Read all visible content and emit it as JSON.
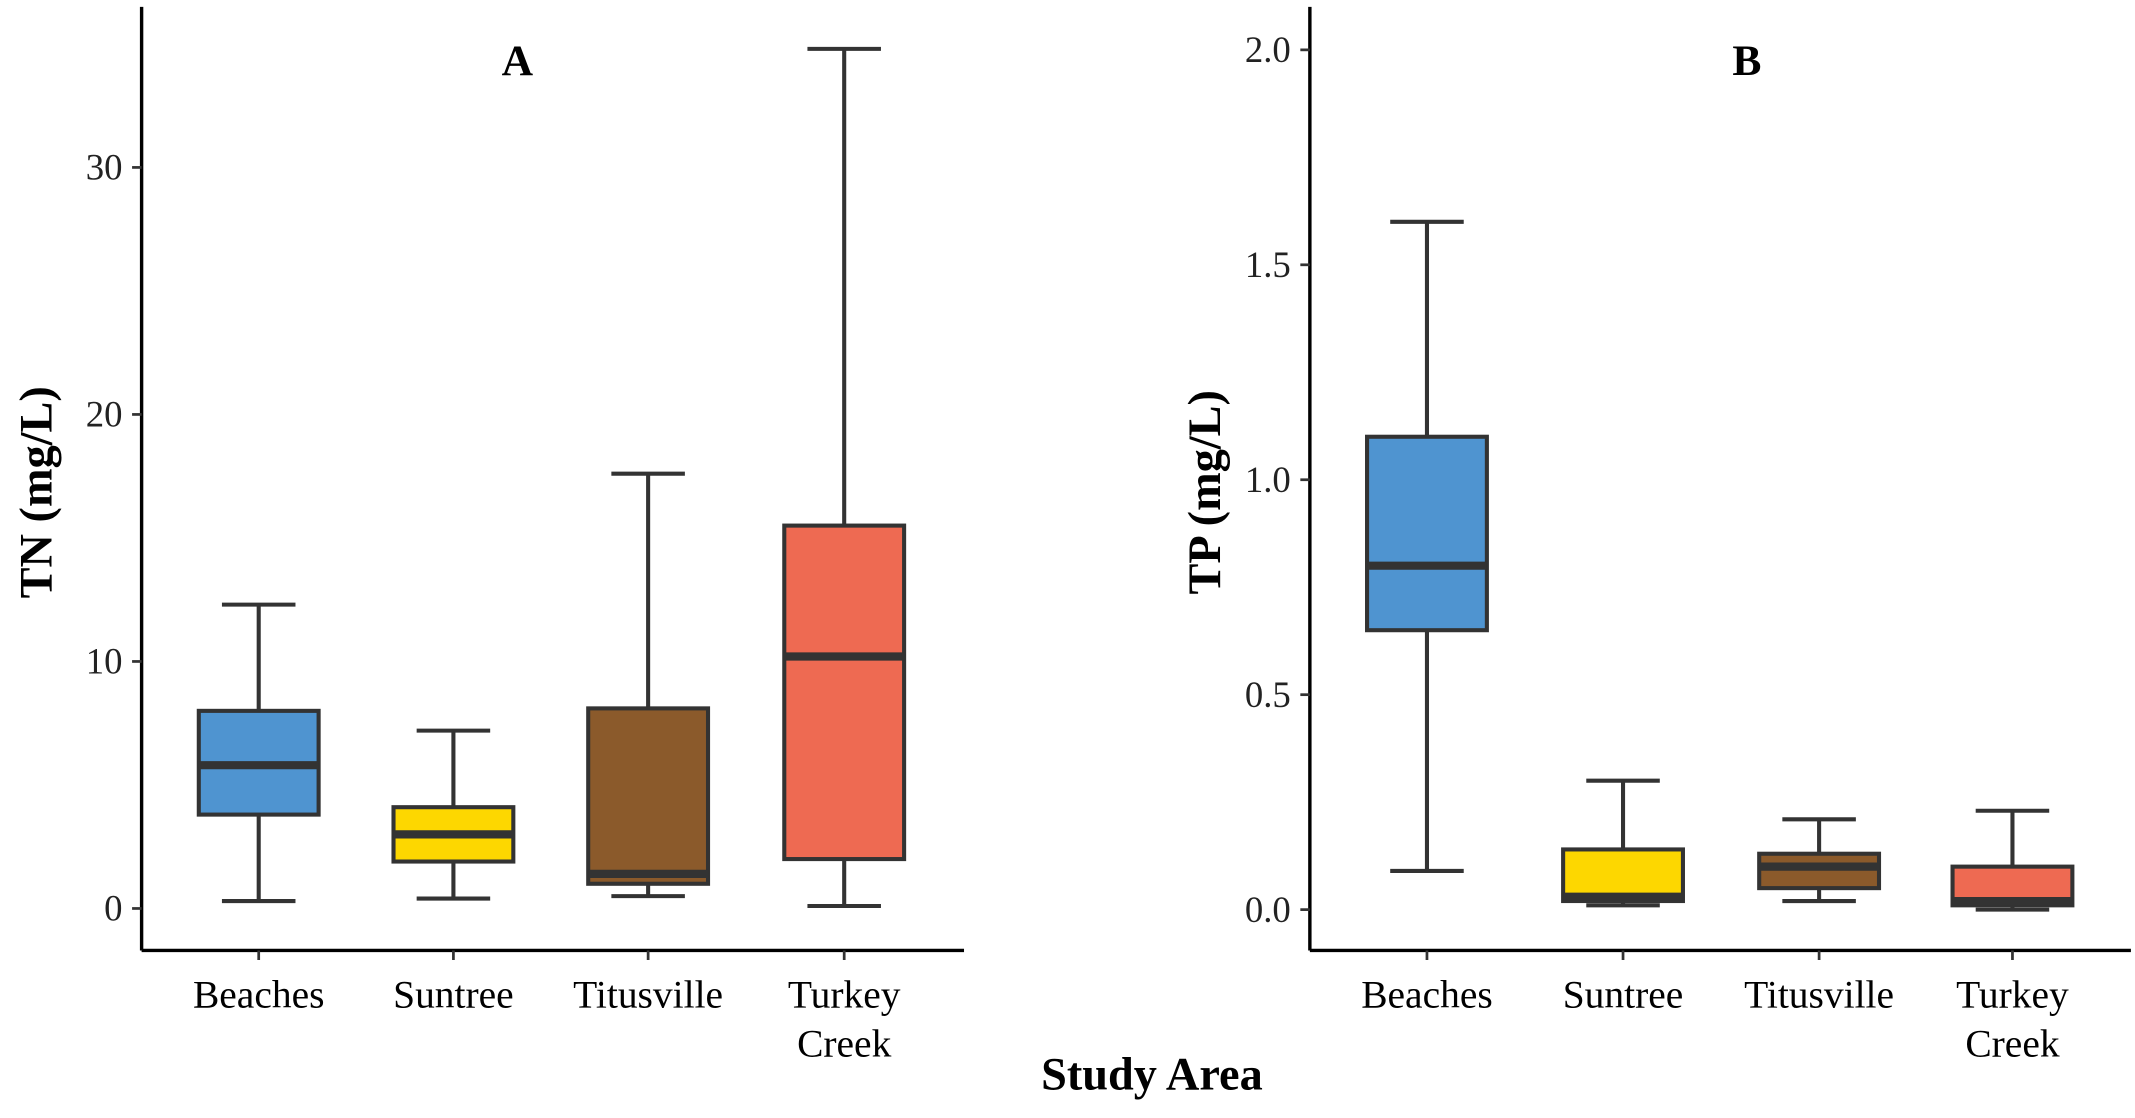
{
  "chart_data": [
    {
      "type": "box",
      "title": "A",
      "ylabel": "TN (mg/L)",
      "xlabel": "Study Area",
      "ylim": [
        -1.7,
        36.5
      ],
      "yticks": [
        0,
        10,
        20,
        30
      ],
      "categories": [
        "Beaches",
        "Suntree",
        "Titusville",
        "Turkey Creek"
      ],
      "category_lines": [
        [
          "Beaches"
        ],
        [
          "Suntree"
        ],
        [
          "Titusville"
        ],
        [
          "Turkey",
          "Creek"
        ]
      ],
      "colors": [
        "#4f94d0",
        "#fdd700",
        "#8b5a2b",
        "#ee6a52"
      ],
      "boxes": [
        {
          "min": 0.3,
          "q1": 3.8,
          "median": 5.8,
          "q3": 8.0,
          "max": 12.3
        },
        {
          "min": 0.4,
          "q1": 1.9,
          "median": 3.0,
          "q3": 4.1,
          "max": 7.2
        },
        {
          "min": 0.5,
          "q1": 1.0,
          "median": 1.4,
          "q3": 8.1,
          "max": 17.6
        },
        {
          "min": 0.1,
          "q1": 2.0,
          "median": 10.2,
          "q3": 15.5,
          "max": 34.8
        }
      ]
    },
    {
      "type": "box",
      "title": "B",
      "ylabel": "TP (mg/L)",
      "xlabel": "Study Area",
      "ylim": [
        -0.095,
        2.1
      ],
      "yticks": [
        "0.0",
        "0.5",
        "1.0",
        "1.5",
        "2.0"
      ],
      "categories": [
        "Beaches",
        "Suntree",
        "Titusville",
        "Turkey Creek"
      ],
      "category_lines": [
        [
          "Beaches"
        ],
        [
          "Suntree"
        ],
        [
          "Titusville"
        ],
        [
          "Turkey",
          "Creek"
        ]
      ],
      "colors": [
        "#4f94d0",
        "#fdd700",
        "#8b5a2b",
        "#ee6a52"
      ],
      "boxes": [
        {
          "min": 0.09,
          "q1": 0.65,
          "median": 0.8,
          "q3": 1.1,
          "max": 1.6
        },
        {
          "min": 0.01,
          "q1": 0.02,
          "median": 0.03,
          "q3": 0.14,
          "max": 0.3
        },
        {
          "min": 0.02,
          "q1": 0.05,
          "median": 0.1,
          "q3": 0.13,
          "max": 0.21
        },
        {
          "min": 0.0,
          "q1": 0.01,
          "median": 0.02,
          "q3": 0.1,
          "max": 0.23
        }
      ]
    }
  ],
  "shared_xlabel": "Study Area"
}
